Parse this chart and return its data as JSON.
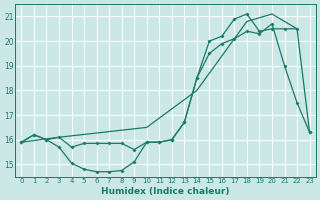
{
  "xlabel": "Humidex (Indice chaleur)",
  "bg_color": "#cce8e6",
  "grid_color": "#ffffff",
  "line_color": "#1a7a6a",
  "xlim": [
    -0.5,
    23.5
  ],
  "ylim": [
    14.5,
    21.5
  ],
  "yticks": [
    15,
    16,
    17,
    18,
    19,
    20,
    21
  ],
  "xticks": [
    0,
    1,
    2,
    3,
    4,
    5,
    6,
    7,
    8,
    9,
    10,
    11,
    12,
    13,
    14,
    15,
    16,
    17,
    18,
    19,
    20,
    21,
    22,
    23
  ],
  "line1_x": [
    0,
    1,
    2,
    3,
    4,
    5,
    6,
    7,
    8,
    9,
    10,
    11,
    12,
    13,
    14,
    15,
    16,
    17,
    18,
    19,
    20,
    21,
    22,
    23
  ],
  "line1_y": [
    15.9,
    16.2,
    16.0,
    15.7,
    15.05,
    14.8,
    14.7,
    14.7,
    14.75,
    15.1,
    15.9,
    15.9,
    16.0,
    16.7,
    18.5,
    19.5,
    19.9,
    20.1,
    20.4,
    20.3,
    20.7,
    19.0,
    17.5,
    16.3
  ],
  "line2_x": [
    0,
    1,
    2,
    3,
    4,
    5,
    6,
    7,
    8,
    9,
    10,
    11,
    12,
    13,
    14,
    15,
    16,
    17,
    18,
    19,
    20,
    21,
    22,
    23
  ],
  "line2_y": [
    15.9,
    16.2,
    16.0,
    16.1,
    15.7,
    15.85,
    15.85,
    15.85,
    15.85,
    15.6,
    15.9,
    15.9,
    16.0,
    16.7,
    18.5,
    20.0,
    20.2,
    20.9,
    21.1,
    20.4,
    20.5,
    20.5,
    20.5,
    16.3
  ],
  "line3_x": [
    0,
    3,
    10,
    14,
    18,
    20,
    22
  ],
  "line3_y": [
    15.9,
    16.1,
    16.5,
    18.0,
    20.8,
    21.1,
    20.5
  ]
}
